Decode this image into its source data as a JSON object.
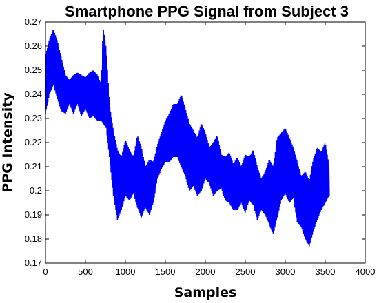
{
  "chart_data": {
    "type": "line",
    "title": "Smartphone PPG Signal from Subject 3",
    "xlabel": "Samples",
    "ylabel": "PPG Intensity",
    "xlim": [
      0,
      4000
    ],
    "ylim": [
      0.17,
      0.27
    ],
    "xticks": [
      0,
      500,
      1000,
      1500,
      2000,
      2500,
      3000,
      3500,
      4000
    ],
    "yticks": [
      0.17,
      0.18,
      0.19,
      0.2,
      0.21,
      0.22,
      0.23,
      0.24,
      0.25,
      0.26,
      0.27
    ],
    "ytick_labels": [
      "0.17",
      "0.18",
      "0.19",
      "0.2",
      "0.21",
      "0.22",
      "0.23",
      "0.24",
      "0.25",
      "0.26",
      "0.27"
    ],
    "grid": false,
    "line_color": "#0000ff",
    "series": [
      {
        "x": [
          0,
          50,
          100,
          150,
          200,
          250,
          300,
          350,
          400,
          450,
          500,
          550,
          600,
          650,
          700,
          720,
          760,
          800,
          850,
          900,
          950,
          1000,
          1050,
          1100,
          1150,
          1200,
          1250,
          1300,
          1350,
          1400,
          1450,
          1500,
          1550,
          1600,
          1650,
          1700,
          1750,
          1800,
          1850,
          1900,
          1950,
          2000,
          2050,
          2100,
          2150,
          2200,
          2250,
          2300,
          2350,
          2400,
          2450,
          2500,
          2550,
          2600,
          2650,
          2700,
          2750,
          2800,
          2850,
          2900,
          2950,
          3000,
          3050,
          3100,
          3150,
          3200,
          3250,
          3300,
          3350,
          3400,
          3450,
          3500,
          3550
        ],
        "ymin": [
          0.232,
          0.24,
          0.244,
          0.238,
          0.233,
          0.232,
          0.236,
          0.232,
          0.236,
          0.231,
          0.234,
          0.23,
          0.231,
          0.229,
          0.229,
          0.228,
          0.226,
          0.214,
          0.198,
          0.188,
          0.192,
          0.198,
          0.196,
          0.199,
          0.193,
          0.189,
          0.193,
          0.19,
          0.195,
          0.205,
          0.209,
          0.212,
          0.212,
          0.214,
          0.214,
          0.21,
          0.206,
          0.2,
          0.202,
          0.198,
          0.2,
          0.205,
          0.203,
          0.198,
          0.2,
          0.201,
          0.196,
          0.195,
          0.192,
          0.192,
          0.195,
          0.191,
          0.196,
          0.194,
          0.188,
          0.192,
          0.19,
          0.186,
          0.182,
          0.189,
          0.196,
          0.199,
          0.195,
          0.197,
          0.187,
          0.185,
          0.18,
          0.177,
          0.183,
          0.188,
          0.192,
          0.195,
          0.198
        ],
        "ymax": [
          0.256,
          0.263,
          0.267,
          0.262,
          0.255,
          0.248,
          0.246,
          0.248,
          0.249,
          0.248,
          0.247,
          0.249,
          0.25,
          0.248,
          0.244,
          0.268,
          0.259,
          0.236,
          0.225,
          0.217,
          0.214,
          0.221,
          0.217,
          0.214,
          0.223,
          0.218,
          0.21,
          0.213,
          0.212,
          0.219,
          0.224,
          0.229,
          0.232,
          0.236,
          0.236,
          0.24,
          0.234,
          0.228,
          0.225,
          0.222,
          0.228,
          0.224,
          0.218,
          0.22,
          0.223,
          0.215,
          0.214,
          0.216,
          0.211,
          0.214,
          0.21,
          0.215,
          0.214,
          0.217,
          0.21,
          0.205,
          0.208,
          0.213,
          0.21,
          0.222,
          0.224,
          0.226,
          0.222,
          0.218,
          0.212,
          0.206,
          0.208,
          0.204,
          0.213,
          0.218,
          0.216,
          0.22,
          0.21
        ]
      }
    ]
  }
}
